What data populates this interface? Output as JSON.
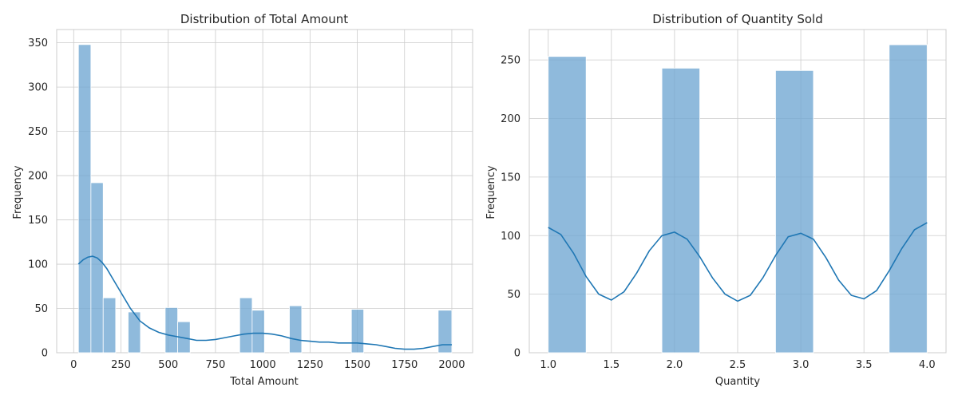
{
  "chart_data": [
    {
      "type": "bar",
      "title": "Distribution of Total Amount",
      "xlabel": "Total Amount",
      "ylabel": "Frequency",
      "xlim": [
        -90,
        2110
      ],
      "ylim": [
        0,
        365
      ],
      "xticks": [
        0,
        250,
        500,
        750,
        1000,
        1250,
        1500,
        1750,
        2000
      ],
      "yticks": [
        0,
        50,
        100,
        150,
        200,
        250,
        300,
        350
      ],
      "grid": true,
      "bins": [
        {
          "x0": 25,
          "x1": 91,
          "value": 348
        },
        {
          "x0": 91,
          "x1": 156,
          "value": 192
        },
        {
          "x0": 156,
          "x1": 222,
          "value": 62
        },
        {
          "x0": 288,
          "x1": 353,
          "value": 46
        },
        {
          "x0": 484,
          "x1": 550,
          "value": 51
        },
        {
          "x0": 550,
          "x1": 616,
          "value": 35
        },
        {
          "x0": 878,
          "x1": 944,
          "value": 62
        },
        {
          "x0": 944,
          "x1": 1009,
          "value": 48
        },
        {
          "x0": 1141,
          "x1": 1206,
          "value": 53
        },
        {
          "x0": 1469,
          "x1": 1534,
          "value": 49
        },
        {
          "x0": 1928,
          "x1": 2000,
          "value": 48
        }
      ],
      "kde": {
        "x": [
          25,
          50,
          75,
          100,
          125,
          150,
          175,
          200,
          250,
          300,
          350,
          400,
          450,
          500,
          550,
          600,
          650,
          700,
          750,
          800,
          850,
          900,
          950,
          1000,
          1050,
          1100,
          1150,
          1200,
          1250,
          1300,
          1350,
          1400,
          1450,
          1500,
          1550,
          1600,
          1650,
          1700,
          1750,
          1800,
          1850,
          1900,
          1950,
          2000
        ],
        "y": [
          100,
          105,
          108,
          109,
          107,
          102,
          95,
          86,
          68,
          50,
          36,
          28,
          23,
          20,
          18,
          16,
          14,
          14,
          15,
          17,
          19,
          21,
          22,
          22,
          21,
          19,
          16,
          14,
          13,
          12,
          12,
          11,
          11,
          11,
          10,
          9,
          7,
          5,
          4,
          4,
          5,
          7,
          9,
          9
        ],
        "color": "#1f77b4"
      },
      "bar_color": "#6fa7d2"
    },
    {
      "type": "bar",
      "title": "Distribution of Quantity Sold",
      "xlabel": "Quantity",
      "ylabel": "Frequency",
      "xlim": [
        0.85,
        4.15
      ],
      "ylim": [
        0,
        276
      ],
      "xticks": [
        1.0,
        1.5,
        2.0,
        2.5,
        3.0,
        3.5,
        4.0
      ],
      "xtick_labels": [
        "1.0",
        "1.5",
        "2.0",
        "2.5",
        "3.0",
        "3.5",
        "4.0"
      ],
      "yticks": [
        0,
        50,
        100,
        150,
        200,
        250
      ],
      "grid": true,
      "bins": [
        {
          "x0": 1.0,
          "x1": 1.3,
          "value": 253
        },
        {
          "x0": 1.9,
          "x1": 2.2,
          "value": 243
        },
        {
          "x0": 2.8,
          "x1": 3.1,
          "value": 241
        },
        {
          "x0": 3.7,
          "x1": 4.0,
          "value": 263
        }
      ],
      "kde": {
        "x": [
          1.0,
          1.1,
          1.2,
          1.3,
          1.4,
          1.5,
          1.6,
          1.7,
          1.8,
          1.9,
          2.0,
          2.1,
          2.2,
          2.3,
          2.4,
          2.5,
          2.6,
          2.7,
          2.8,
          2.9,
          3.0,
          3.1,
          3.2,
          3.3,
          3.4,
          3.5,
          3.6,
          3.7,
          3.8,
          3.9,
          4.0
        ],
        "y": [
          107,
          101,
          85,
          65,
          50,
          45,
          52,
          68,
          87,
          100,
          103,
          97,
          82,
          64,
          50,
          44,
          49,
          64,
          83,
          99,
          102,
          97,
          81,
          62,
          49,
          46,
          53,
          70,
          89,
          105,
          111
        ],
        "color": "#1f77b4"
      },
      "bar_color": "#6fa7d2"
    }
  ]
}
